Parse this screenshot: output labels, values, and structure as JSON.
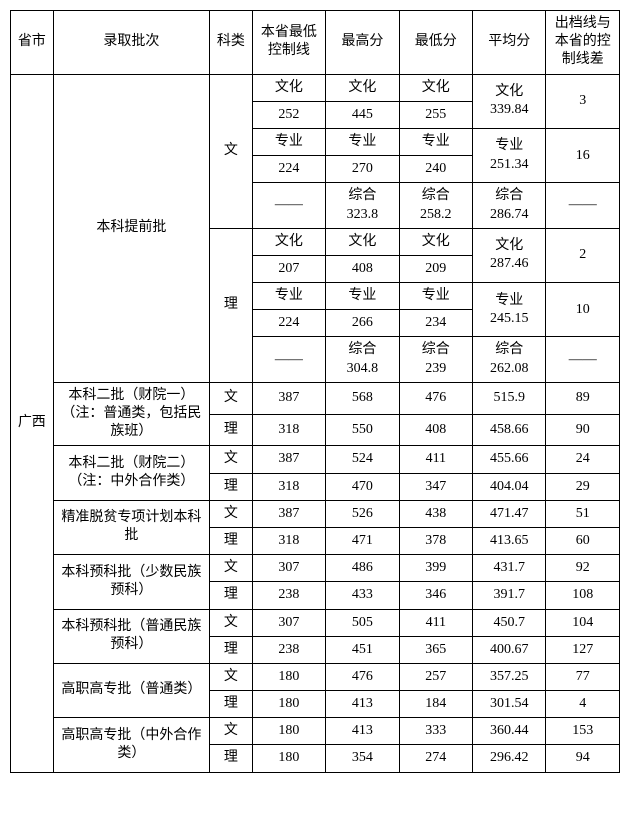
{
  "headers": {
    "prov": "省市",
    "batch": "录取批次",
    "subj": "科类",
    "ctrl": "本省最低控制线",
    "max": "最高分",
    "min": "最低分",
    "avg": "平均分",
    "diff": "出档线与本省的控制线差"
  },
  "province": "广西",
  "labels": {
    "wenhua": "文化",
    "zhuanye": "专业",
    "zonghe": "综合",
    "dash": "——",
    "wen": "文",
    "li": "理"
  },
  "batch1": {
    "name": "本科提前批",
    "wen": {
      "wh_ctrl": "252",
      "wh_max": "445",
      "wh_min": "255",
      "wh_avg": "339.84",
      "wh_diff": "3",
      "zy_ctrl": "224",
      "zy_max": "270",
      "zy_min": "240",
      "zy_avg": "251.34",
      "zy_diff": "16",
      "zh_max": "323.8",
      "zh_min": "258.2",
      "zh_avg": "286.74"
    },
    "li": {
      "wh_ctrl": "207",
      "wh_max": "408",
      "wh_min": "209",
      "wh_avg": "287.46",
      "wh_diff": "2",
      "zy_ctrl": "224",
      "zy_max": "266",
      "zy_min": "234",
      "zy_avg": "245.15",
      "zy_diff": "10",
      "zh_max": "304.8",
      "zh_min": "239",
      "zh_avg": "262.08"
    }
  },
  "rows": [
    {
      "batch": "本科二批（财院一）（注：普通类，包括民族班）",
      "subj": "文",
      "ctrl": "387",
      "max": "568",
      "min": "476",
      "avg": "515.9",
      "diff": "89"
    },
    {
      "subj": "理",
      "ctrl": "318",
      "max": "550",
      "min": "408",
      "avg": "458.66",
      "diff": "90"
    },
    {
      "batch": "本科二批（财院二）（注：中外合作类）",
      "subj": "文",
      "ctrl": "387",
      "max": "524",
      "min": "411",
      "avg": "455.66",
      "diff": "24"
    },
    {
      "subj": "理",
      "ctrl": "318",
      "max": "470",
      "min": "347",
      "avg": "404.04",
      "diff": "29"
    },
    {
      "batch": "精准脱贫专项计划本科批",
      "subj": "文",
      "ctrl": "387",
      "max": "526",
      "min": "438",
      "avg": "471.47",
      "diff": "51"
    },
    {
      "subj": "理",
      "ctrl": "318",
      "max": "471",
      "min": "378",
      "avg": "413.65",
      "diff": "60"
    },
    {
      "batch": "本科预科批（少数民族预科）",
      "subj": "文",
      "ctrl": "307",
      "max": "486",
      "min": "399",
      "avg": "431.7",
      "diff": "92"
    },
    {
      "subj": "理",
      "ctrl": "238",
      "max": "433",
      "min": "346",
      "avg": "391.7",
      "diff": "108"
    },
    {
      "batch": "本科预科批（普通民族预科）",
      "subj": "文",
      "ctrl": "307",
      "max": "505",
      "min": "411",
      "avg": "450.7",
      "diff": "104"
    },
    {
      "subj": "理",
      "ctrl": "238",
      "max": "451",
      "min": "365",
      "avg": "400.67",
      "diff": "127"
    },
    {
      "batch": "高职高专批（普通类）",
      "subj": "文",
      "ctrl": "180",
      "max": "476",
      "min": "257",
      "avg": "357.25",
      "diff": "77"
    },
    {
      "subj": "理",
      "ctrl": "180",
      "max": "413",
      "min": "184",
      "avg": "301.54",
      "diff": "4"
    },
    {
      "batch": "高职高专批（中外合作类）",
      "subj": "文",
      "ctrl": "180",
      "max": "413",
      "min": "333",
      "avg": "360.44",
      "diff": "153"
    },
    {
      "subj": "理",
      "ctrl": "180",
      "max": "354",
      "min": "274",
      "avg": "296.42",
      "diff": "94"
    }
  ]
}
